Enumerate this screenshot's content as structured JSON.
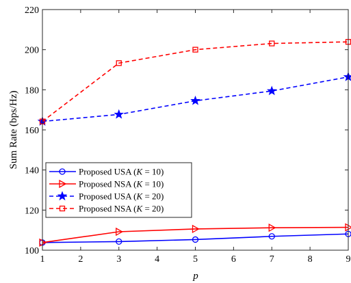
{
  "chart_data": {
    "type": "line",
    "xlabel": "p",
    "ylabel": "Sum Rate (bps/Hz)",
    "xlim": [
      1,
      9
    ],
    "ylim": [
      100,
      220
    ],
    "xticks": [
      "1",
      "2",
      "3",
      "4",
      "5",
      "6",
      "7",
      "8",
      "9"
    ],
    "yticks": [
      "100",
      "120",
      "140",
      "160",
      "180",
      "200",
      "220"
    ],
    "grid": false,
    "legend_position": "lower-left",
    "series": [
      {
        "name": "Proposed USA (K = 10)",
        "legend": {
          "prefix": "Proposed USA (",
          "var": "K",
          "suffix": " = 10)"
        },
        "x": [
          1,
          3,
          5,
          7,
          9
        ],
        "values": [
          103.8,
          104.3,
          105.3,
          106.9,
          108.1
        ],
        "color": "#0000ff",
        "line_style": "solid",
        "marker": "circle"
      },
      {
        "name": "Proposed NSA (K = 10)",
        "legend": {
          "prefix": "Proposed NSA (",
          "var": "K",
          "suffix": " = 10)"
        },
        "x": [
          1,
          3,
          5,
          7,
          9
        ],
        "values": [
          103.8,
          109.2,
          110.6,
          111.2,
          111.4
        ],
        "color": "#ff0000",
        "line_style": "solid",
        "marker": "triangle-right"
      },
      {
        "name": "Proposed USA (K = 20)",
        "legend": {
          "prefix": "Proposed USA (",
          "var": "K",
          "suffix": " = 20)"
        },
        "x": [
          1,
          3,
          5,
          7,
          9
        ],
        "values": [
          164.2,
          167.7,
          174.5,
          179.4,
          186.4
        ],
        "color": "#0000ff",
        "line_style": "dashed",
        "marker": "star"
      },
      {
        "name": "Proposed NSA (K = 20)",
        "legend": {
          "prefix": "Proposed NSA (",
          "var": "K",
          "suffix": " = 20)"
        },
        "x": [
          1,
          3,
          5,
          7,
          9
        ],
        "values": [
          164.2,
          193.3,
          200.0,
          203.1,
          203.9
        ],
        "color": "#ff0000",
        "line_style": "dashed",
        "marker": "square"
      }
    ]
  }
}
